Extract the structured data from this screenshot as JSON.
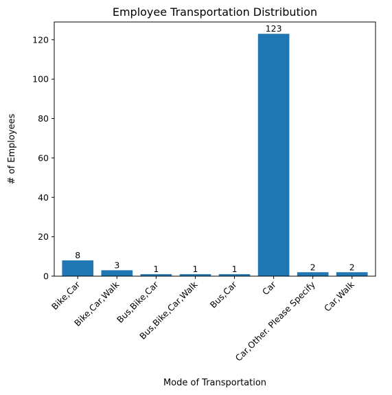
{
  "chart_data": {
    "type": "bar",
    "title": "Employee Transportation Distribution",
    "xlabel": "Mode of Transportation",
    "ylabel": "# of Employees",
    "categories": [
      "Bike,Car",
      "Bike,Car,Walk",
      "Bus,Bike,Car",
      "Bus,Bike,Car,Walk",
      "Bus,Car",
      "Car",
      "Car,Other. Please Specify",
      "Car,Walk"
    ],
    "values": [
      8,
      3,
      1,
      1,
      1,
      123,
      2,
      2
    ],
    "ylim": [
      0,
      129
    ],
    "yticks": [
      0,
      20,
      40,
      60,
      80,
      100,
      120
    ],
    "bar_color": "#1f77b4",
    "grid": false,
    "legend": "none"
  }
}
